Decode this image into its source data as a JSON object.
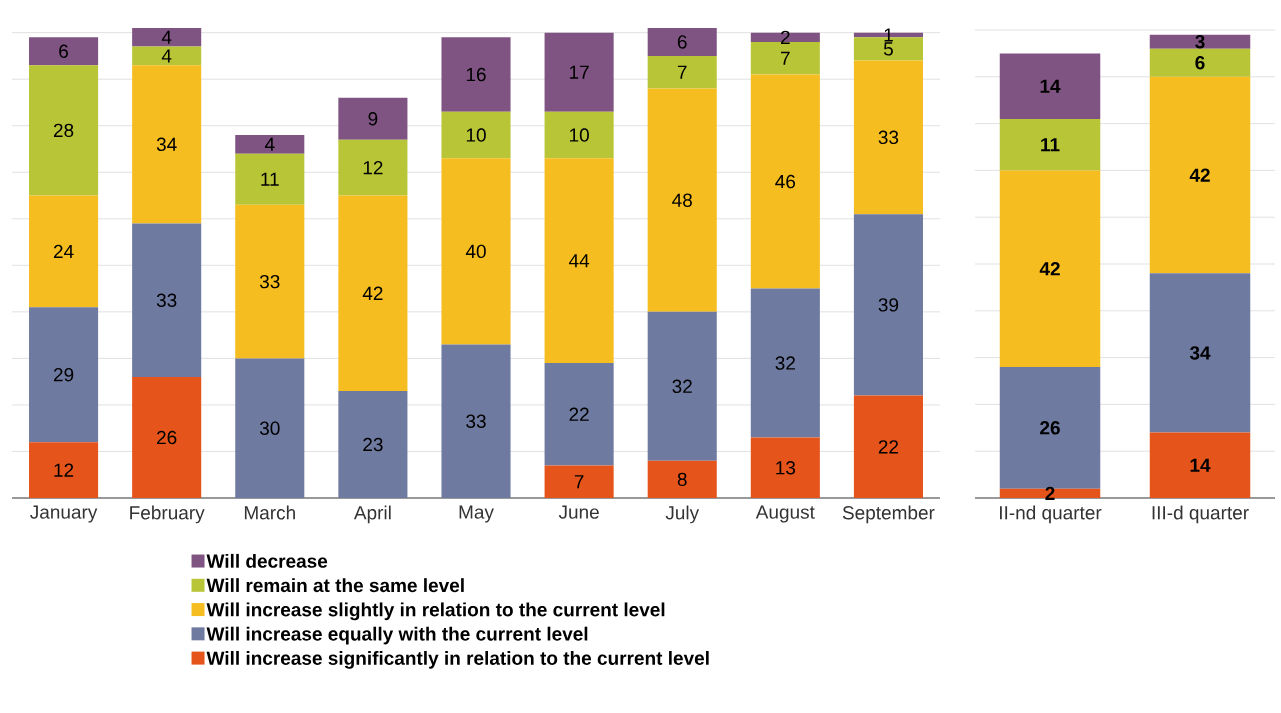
{
  "chart_data": [
    {
      "type": "bar",
      "stacked": true,
      "categories": [
        "January",
        "February",
        "March",
        "April",
        "May",
        "June",
        "July",
        "August",
        "September"
      ],
      "ylim": [
        0,
        101
      ],
      "yticks": [
        {
          "value": 0,
          "label": null
        },
        {
          "value": 10,
          "label": null
        },
        {
          "value": 20,
          "label": null
        },
        {
          "value": 30,
          "label": null
        },
        {
          "value": 40,
          "label": null
        },
        {
          "value": 50,
          "label": null
        },
        {
          "value": 60,
          "label": null
        },
        {
          "value": 70,
          "label": null
        },
        {
          "value": 80,
          "label": null
        },
        {
          "value": 90,
          "label": null
        },
        {
          "value": 100,
          "label": null
        }
      ],
      "tick_labels": "x",
      "grid": "y",
      "legend": "bottom",
      "data_labels": true,
      "series": [
        {
          "name": "Will increase significantly in relation to the current level",
          "color": "#e5541a",
          "values": [
            12,
            26,
            null,
            null,
            null,
            7,
            8,
            13,
            22
          ]
        },
        {
          "name": "Will increase equally with the current level",
          "color": "#6f7aa0",
          "values": [
            29,
            33,
            30,
            23,
            33,
            22,
            32,
            32,
            39
          ]
        },
        {
          "name": "Will increase slightly in relation to the current level",
          "color": "#f5bd1f",
          "values": [
            24,
            34,
            33,
            42,
            40,
            44,
            48,
            46,
            33
          ]
        },
        {
          "name": "Will remain at the same level",
          "color": "#b8c536",
          "values": [
            28,
            4,
            11,
            12,
            10,
            10,
            7,
            7,
            5
          ]
        },
        {
          "name": "Will decrease",
          "color": "#7f5482",
          "values": [
            6,
            4,
            4,
            9,
            16,
            17,
            6,
            2,
            1
          ]
        }
      ]
    },
    {
      "type": "bar",
      "stacked": true,
      "categories": [
        "II-nd quarter",
        "III-d quarter"
      ],
      "ylim": [
        0,
        100
      ],
      "yticks": [
        {
          "value": 0,
          "label": null
        },
        {
          "value": 10,
          "label": null
        },
        {
          "value": 20,
          "label": null
        },
        {
          "value": 30,
          "label": null
        },
        {
          "value": 40,
          "label": null
        },
        {
          "value": 50,
          "label": null
        },
        {
          "value": 60,
          "label": null
        },
        {
          "value": 70,
          "label": null
        },
        {
          "value": 80,
          "label": null
        },
        {
          "value": 90,
          "label": null
        },
        {
          "value": 100,
          "label": null
        }
      ],
      "tick_labels": "x",
      "grid": "y",
      "data_labels": true,
      "series": [
        {
          "color": "#e5541a",
          "values": [
            2,
            14
          ]
        },
        {
          "color": "#6f7aa0",
          "values": [
            26,
            34
          ]
        },
        {
          "color": "#f5bd1f",
          "values": [
            42,
            42
          ]
        },
        {
          "color": "#b8c536",
          "values": [
            11,
            6
          ]
        },
        {
          "color": "#7f5482",
          "values": [
            14,
            3
          ]
        }
      ]
    }
  ]
}
